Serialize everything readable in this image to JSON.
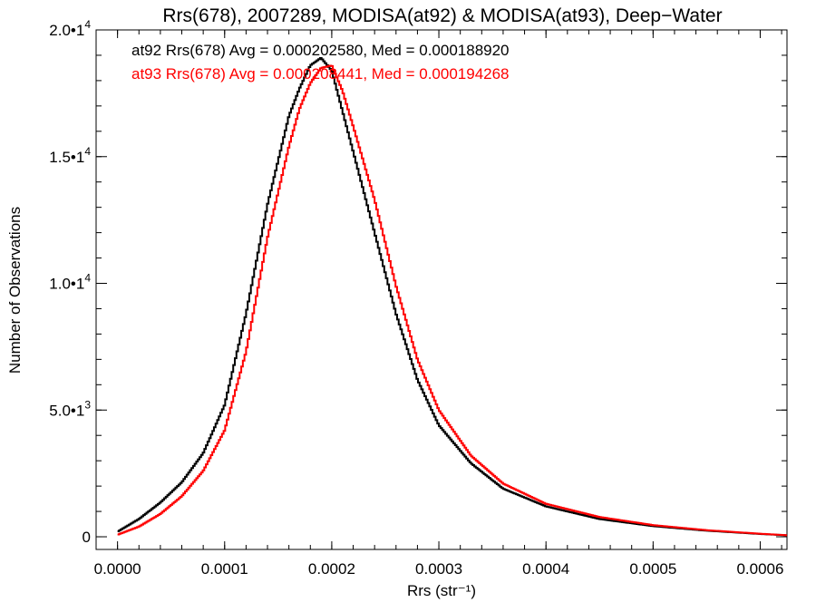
{
  "chart_data": {
    "type": "line",
    "step": true,
    "title": "Rrs(678), 2007289, MODISA(at92) & MODISA(at93), Deep−Water",
    "xlabel": "Rrs (str⁻¹)",
    "ylabel": "Number of Observations",
    "xlim": [
      -2e-05,
      0.000625
    ],
    "ylim": [
      -500,
      20000
    ],
    "x_ticks": [
      0.0,
      0.0001,
      0.0002,
      0.0003,
      0.0004,
      0.0005,
      0.0006
    ],
    "x_tick_labels": [
      "0.0000",
      "0.0001",
      "0.0002",
      "0.0003",
      "0.0004",
      "0.0005",
      "0.0006"
    ],
    "y_ticks": [
      0,
      5000,
      10000,
      15000,
      20000
    ],
    "y_tick_labels": [
      {
        "base": "0",
        "exp": ""
      },
      {
        "base": "5.0•1",
        "exp": "3"
      },
      {
        "base": "1.0•1",
        "exp": "4"
      },
      {
        "base": "1.5•1",
        "exp": "4"
      },
      {
        "base": "2.0•1",
        "exp": "4"
      }
    ],
    "grid": false,
    "series": [
      {
        "name": "at92",
        "color": "#000000",
        "annotation": "at92 Rrs(678) Avg = 0.000202580, Med = 0.000188920",
        "x": [
          0,
          2e-05,
          4e-05,
          6e-05,
          8e-05,
          0.0001,
          0.00012,
          0.00014,
          0.00016,
          0.00017,
          0.00018,
          0.00019,
          0.0002,
          0.00021,
          0.00022,
          0.00024,
          0.00026,
          0.00028,
          0.0003,
          0.00033,
          0.00036,
          0.0004,
          0.00045,
          0.0005,
          0.00055,
          0.0006,
          0.000625
        ],
        "y": [
          200,
          700,
          1350,
          2150,
          3300,
          5200,
          8800,
          13100,
          16600,
          17700,
          18600,
          18900,
          18400,
          16800,
          15200,
          12000,
          8800,
          6200,
          4400,
          2900,
          1900,
          1200,
          700,
          420,
          240,
          110,
          60
        ]
      },
      {
        "name": "at93",
        "color": "#ff0000",
        "annotation": "at93 Rrs(678) Avg = 0.000208441, Med = 0.000194268",
        "x": [
          0,
          2e-05,
          4e-05,
          6e-05,
          8e-05,
          0.0001,
          0.00012,
          0.00014,
          0.00016,
          0.00017,
          0.00018,
          0.00019,
          0.0002,
          0.00021,
          0.00022,
          0.00024,
          0.00026,
          0.00028,
          0.0003,
          0.00033,
          0.00036,
          0.0004,
          0.00045,
          0.0005,
          0.00055,
          0.0006,
          0.000625
        ],
        "y": [
          80,
          400,
          900,
          1600,
          2600,
          4200,
          7300,
          11800,
          15400,
          16900,
          17900,
          18500,
          18600,
          17600,
          16200,
          13300,
          9900,
          7000,
          5000,
          3200,
          2100,
          1300,
          780,
          460,
          260,
          120,
          60
        ]
      }
    ]
  }
}
